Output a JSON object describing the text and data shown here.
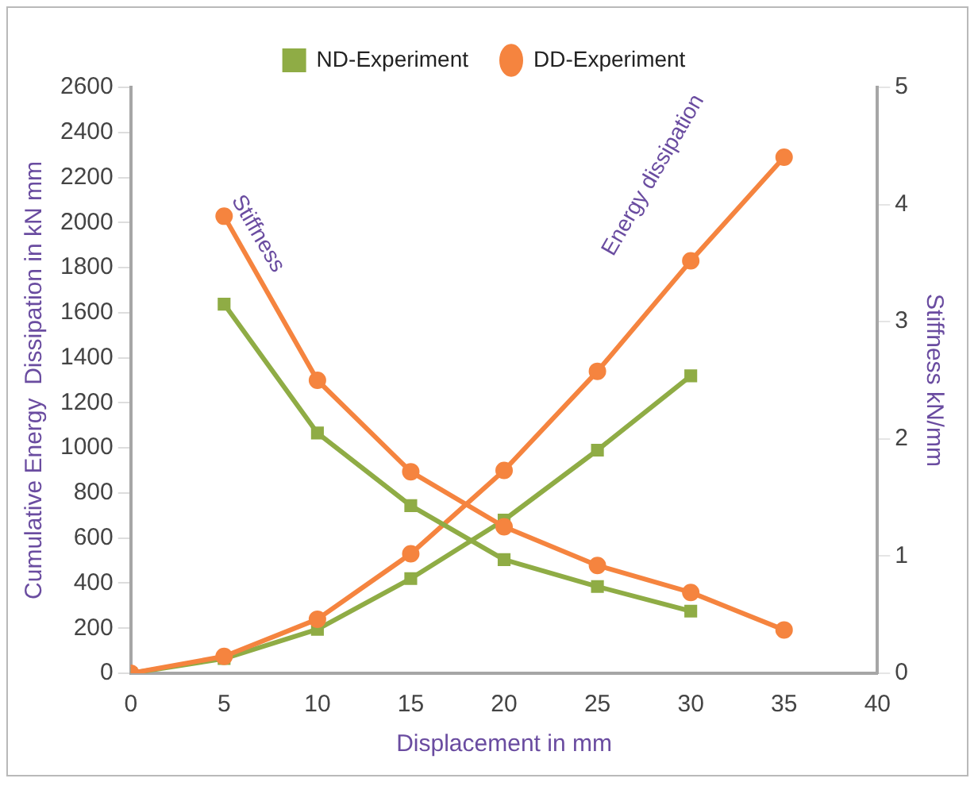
{
  "chart_data": {
    "type": "line",
    "xlabel": "Displacement in mm",
    "ylabel": "Cumulative Energy  Dissipation in kN mm",
    "y2label": "Stiffness kN/mm",
    "xlim": [
      0,
      40
    ],
    "xticks": [
      0,
      5,
      10,
      15,
      20,
      25,
      30,
      35,
      40
    ],
    "ylim": [
      0,
      2600
    ],
    "yticks": [
      0,
      200,
      400,
      600,
      800,
      1000,
      1200,
      1400,
      1600,
      1800,
      2000,
      2200,
      2400,
      2600
    ],
    "y2lim": [
      0,
      5
    ],
    "y2ticks": [
      0,
      1,
      2,
      3,
      4,
      5
    ],
    "grid": false,
    "legend": "top",
    "line_style": "solid",
    "series": [
      {
        "name": "ND-Experiment",
        "color": "#8fac45",
        "marker": "square",
        "x": [
          0,
          5,
          10,
          15,
          20,
          25,
          30
        ],
        "values": [
          0,
          65,
          195,
          420,
          680,
          990,
          1320
        ]
      },
      {
        "name": "DD-Experiment",
        "color": "#f5843f",
        "marker": "circle",
        "x": [
          0,
          5,
          10,
          15,
          20,
          25,
          30,
          35
        ],
        "values": [
          0,
          75,
          240,
          530,
          900,
          1340,
          1830,
          2290
        ]
      },
      {
        "color": "#8fac45",
        "marker": "square",
        "axis": "y2",
        "x": [
          5,
          10,
          15,
          20,
          25,
          30
        ],
        "values": [
          3.15,
          2.05,
          1.43,
          0.97,
          0.74,
          0.53
        ]
      },
      {
        "color": "#f5843f",
        "marker": "circle",
        "axis": "y2",
        "x": [
          5,
          10,
          15,
          20,
          25,
          30,
          35
        ],
        "values": [
          3.9,
          2.5,
          1.72,
          1.25,
          0.92,
          0.69,
          0.37
        ]
      }
    ],
    "annotations": [
      "Stiffness",
      "Energy dissipation"
    ]
  }
}
